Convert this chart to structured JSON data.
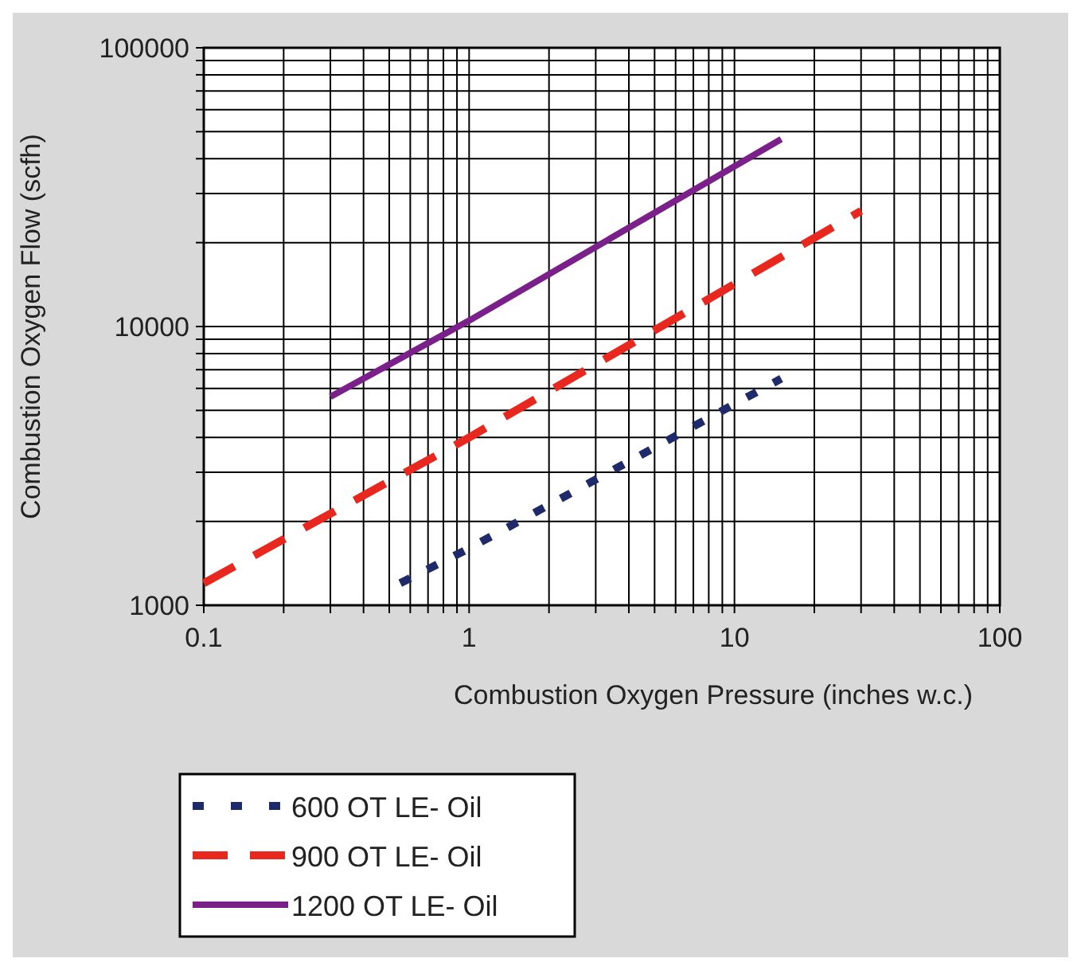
{
  "chart_data": {
    "type": "line",
    "xlabel": "Combustion Oxygen Pressure (inches w.c.)",
    "ylabel": "Combustion Oxygen Flow (scfh)",
    "log": "xy",
    "grid": true,
    "legend": "bottom",
    "xlim": [
      0.1,
      100
    ],
    "ylim": [
      1000,
      100000
    ],
    "xticks": [
      0.1,
      {
        "value": 0.2,
        "label": null
      },
      {
        "value": 0.3,
        "label": null
      },
      {
        "value": 0.4,
        "label": null
      },
      {
        "value": 0.5,
        "label": null
      },
      {
        "value": 0.6,
        "label": null
      },
      {
        "value": 0.7,
        "label": null
      },
      {
        "value": 0.8,
        "label": null
      },
      {
        "value": 0.9,
        "label": null
      },
      1,
      {
        "value": 2,
        "label": null
      },
      {
        "value": 3,
        "label": null
      },
      {
        "value": 4,
        "label": null
      },
      {
        "value": 5,
        "label": null
      },
      {
        "value": 6,
        "label": null
      },
      {
        "value": 7,
        "label": null
      },
      {
        "value": 8,
        "label": null
      },
      {
        "value": 9,
        "label": null
      },
      10,
      {
        "value": 20,
        "label": null
      },
      {
        "value": 30,
        "label": null
      },
      {
        "value": 40,
        "label": null
      },
      {
        "value": 50,
        "label": null
      },
      {
        "value": 60,
        "label": null
      },
      {
        "value": 70,
        "label": null
      },
      {
        "value": 80,
        "label": null
      },
      {
        "value": 90,
        "label": null
      },
      100
    ],
    "yticks": [
      1000,
      {
        "value": 2000,
        "label": null
      },
      {
        "value": 3000,
        "label": null
      },
      {
        "value": 4000,
        "label": null
      },
      {
        "value": 5000,
        "label": null
      },
      {
        "value": 6000,
        "label": null
      },
      {
        "value": 7000,
        "label": null
      },
      {
        "value": 8000,
        "label": null
      },
      {
        "value": 9000,
        "label": null
      },
      10000,
      {
        "value": 20000,
        "label": null
      },
      {
        "value": 30000,
        "label": null
      },
      {
        "value": 40000,
        "label": null
      },
      {
        "value": 50000,
        "label": null
      },
      {
        "value": 60000,
        "label": null
      },
      {
        "value": 70000,
        "label": null
      },
      {
        "value": 80000,
        "label": null
      },
      {
        "value": 90000,
        "label": null
      },
      100000
    ],
    "series": [
      {
        "name": "600 OT LE- Oil",
        "color": "#1f2a6b",
        "line_style": "dotted",
        "x": [
          0.55,
          1,
          15
        ],
        "values": [
          1200,
          1600,
          6500
        ]
      },
      {
        "name": "900 OT LE- Oil",
        "color": "#e8281e",
        "line_style": "dashed",
        "x": [
          0.1,
          1,
          30
        ],
        "values": [
          1200,
          4000,
          26000
        ]
      },
      {
        "name": "1200 OT LE- Oil",
        "color": "#7b1f8a",
        "line_style": "solid",
        "x": [
          0.3,
          1,
          15
        ],
        "values": [
          5600,
          10500,
          47000
        ]
      }
    ]
  }
}
